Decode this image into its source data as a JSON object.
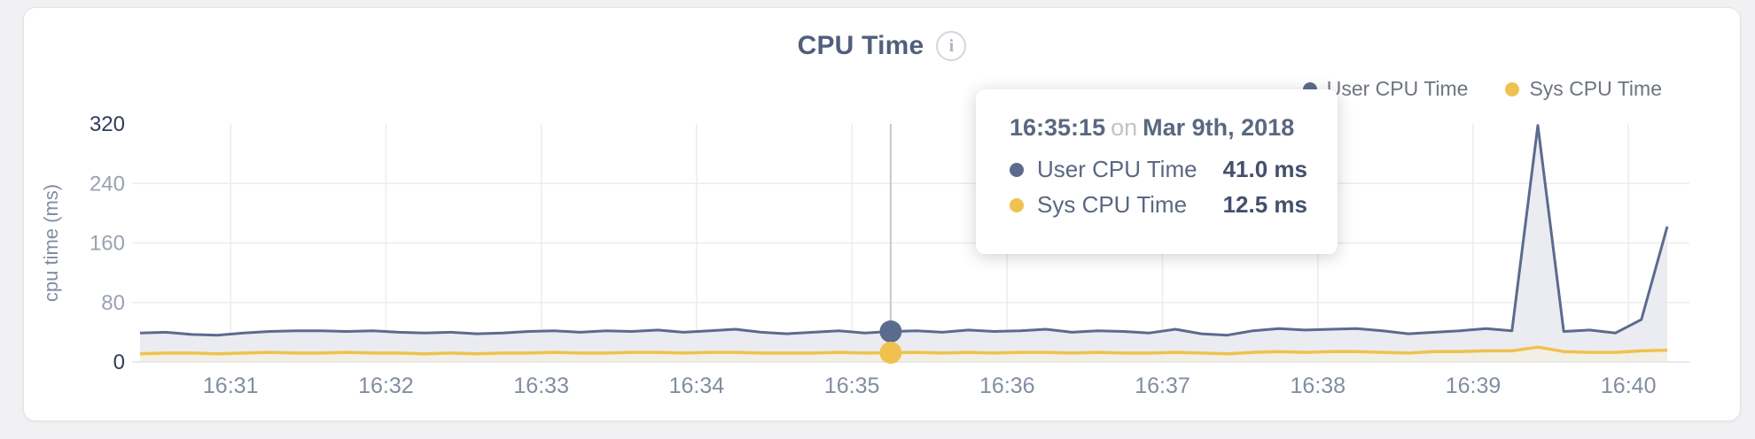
{
  "header": {
    "title": "CPU Time",
    "info_icon": "i"
  },
  "legend": [
    {
      "label": "User CPU Time",
      "color": "#5b6b8e"
    },
    {
      "label": "Sys CPU Time",
      "color": "#efc24f"
    }
  ],
  "tooltip": {
    "time": "16:35:15",
    "preposition": "on",
    "date": "Mar 9th, 2018",
    "rows": [
      {
        "label": "User CPU Time",
        "value": "41.0 ms",
        "color": "#5b6b8e"
      },
      {
        "label": "Sys CPU Time",
        "value": "12.5 ms",
        "color": "#efc24f"
      }
    ]
  },
  "chart_data": {
    "type": "area",
    "title": "CPU Time",
    "xlabel": "",
    "ylabel": "cpu time (ms)",
    "ylim": [
      0,
      320
    ],
    "yticks": [
      0,
      80,
      160,
      240,
      320
    ],
    "xticks": [
      "16:31",
      "16:32",
      "16:33",
      "16:34",
      "16:35",
      "16:36",
      "16:37",
      "16:38",
      "16:39",
      "16:40"
    ],
    "x_start": "16:30:25",
    "x_end": "16:40:15",
    "sample_interval_seconds": 10,
    "legend_position": "top-right",
    "grid": true,
    "series": [
      {
        "name": "User CPU Time",
        "color": "#5b6b8e",
        "fill": "#eaecf1",
        "values": [
          39,
          40,
          37,
          36,
          39,
          41,
          42,
          42,
          41,
          42,
          40,
          39,
          40,
          38,
          39,
          41,
          42,
          40,
          42,
          41,
          43,
          40,
          42,
          44,
          40,
          38,
          40,
          42,
          39,
          41,
          42,
          40,
          43,
          41,
          42,
          44,
          40,
          42,
          41,
          39,
          44,
          38,
          36,
          42,
          45,
          43,
          44,
          45,
          42,
          38,
          40,
          42,
          45,
          42,
          318,
          41,
          43,
          39,
          57,
          182
        ]
      },
      {
        "name": "Sys CPU Time",
        "color": "#efc24f",
        "fill": "#f2f0e4",
        "values": [
          11,
          12,
          12,
          11,
          12,
          13,
          12,
          12,
          13,
          12,
          12,
          11,
          12,
          11,
          12,
          12,
          13,
          12,
          12,
          13,
          13,
          12,
          13,
          13,
          12,
          12,
          12,
          13,
          12,
          12.5,
          13,
          12,
          13,
          12,
          13,
          13,
          12,
          13,
          12,
          12,
          13,
          12,
          11,
          13,
          14,
          13,
          14,
          14,
          13,
          12,
          14,
          14,
          15,
          15,
          20,
          14,
          13,
          13,
          15,
          16
        ]
      }
    ],
    "highlight": {
      "index": 29,
      "time": "16:35:15",
      "user_value_ms": 41.0,
      "sys_value_ms": 12.5
    },
    "style": {
      "grid_color": "#ececee",
      "baseline_color": "#e2e2e4",
      "crosshair_color": "#c9c9cb",
      "xtick_color": "#828da1",
      "ytick_color_mid": "#9aa2b1",
      "ytick_color_edge": "#2f3c59",
      "axis_title_color": "#828da1"
    }
  }
}
